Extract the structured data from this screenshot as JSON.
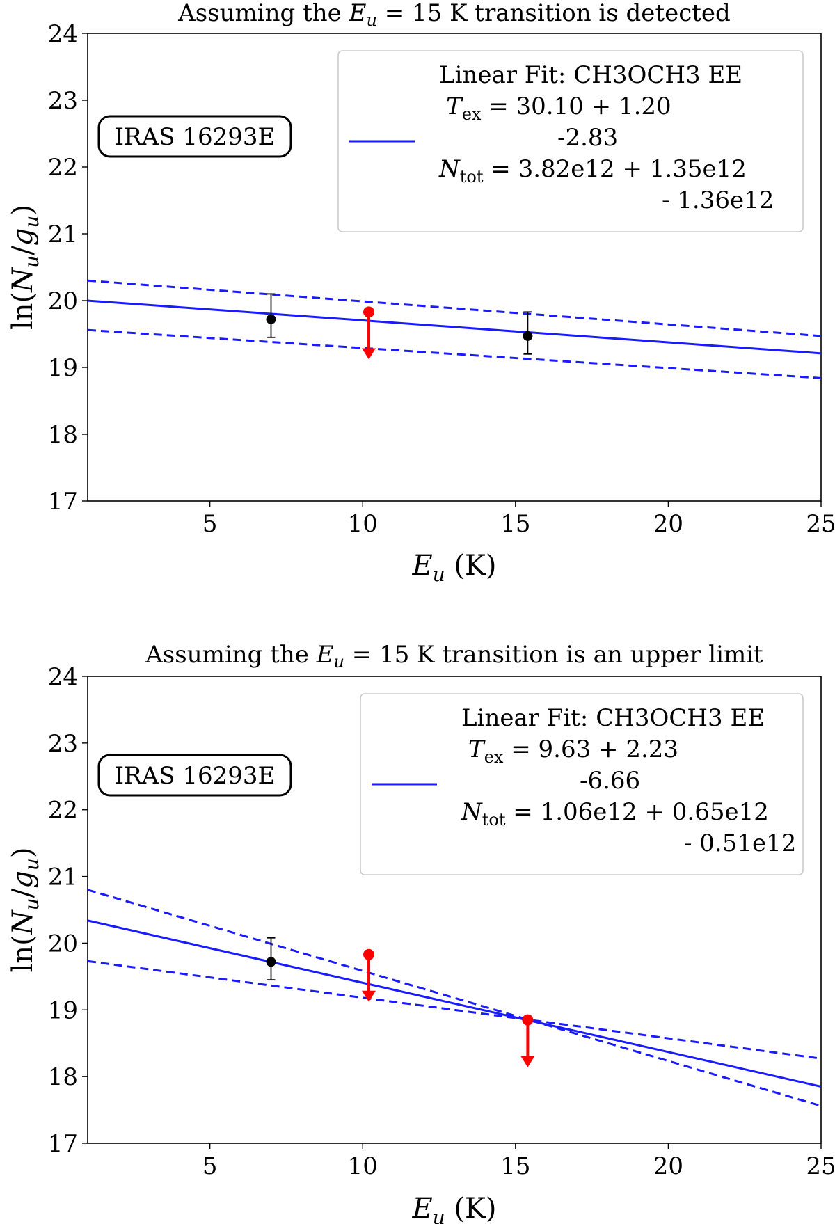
{
  "chart_data": [
    {
      "type": "scatter",
      "title_prefix": "Assuming the",
      "title_var": "E",
      "title_sub": "u",
      "title_suffix": " = 15 K transition is detected",
      "xlabel_var": "E",
      "xlabel_sub": "u",
      "xlabel_unit": " (K)",
      "ylabel": "ln(N_u/g_u)",
      "xlim": [
        1,
        25
      ],
      "ylim": [
        17,
        24
      ],
      "xticks": [
        5,
        10,
        15,
        20,
        25
      ],
      "yticks": [
        17,
        18,
        19,
        20,
        21,
        22,
        23,
        24
      ],
      "source_label": "IRAS 16293E",
      "legend": {
        "line1": "Linear Fit: CH3OCH3 EE",
        "tex_label": "T",
        "tex_sub": "ex",
        "tex_value": " = 30.10 + 1.20",
        "tex_minus": "-2.83",
        "ntot_label": "N",
        "ntot_sub": "tot",
        "ntot_value": " = 3.82e12  + 1.35e12",
        "ntot_minus": "- 1.36e12"
      },
      "fit": {
        "x": [
          1,
          25
        ],
        "y": [
          20.0,
          19.21
        ]
      },
      "fit_upper": {
        "x": [
          1,
          25
        ],
        "y": [
          20.3,
          19.47
        ]
      },
      "fit_lower": {
        "x": [
          1,
          25
        ],
        "y": [
          19.56,
          18.84
        ]
      },
      "detections": [
        {
          "x": 7.0,
          "y": 19.72,
          "yerr_low": 19.45,
          "yerr_high": 20.1
        },
        {
          "x": 15.4,
          "y": 19.47,
          "yerr_low": 19.2,
          "yerr_high": 19.83
        }
      ],
      "upper_limits": [
        {
          "x": 10.2,
          "y": 19.83,
          "arrow_to": 19.12
        }
      ],
      "colors": {
        "fit": "#1a1aff",
        "detection": "#000000",
        "limit": "#ff0000"
      }
    },
    {
      "type": "scatter",
      "title_prefix": "Assuming the",
      "title_var": "E",
      "title_sub": "u",
      "title_suffix": " = 15 K transition is an upper limit",
      "xlabel_var": "E",
      "xlabel_sub": "u",
      "xlabel_unit": " (K)",
      "ylabel": "ln(N_u/g_u)",
      "xlim": [
        1,
        25
      ],
      "ylim": [
        17,
        24
      ],
      "xticks": [
        5,
        10,
        15,
        20,
        25
      ],
      "yticks": [
        17,
        18,
        19,
        20,
        21,
        22,
        23,
        24
      ],
      "source_label": "IRAS 16293E",
      "legend": {
        "line1": "Linear Fit: CH3OCH3 EE",
        "tex_label": "T",
        "tex_sub": "ex",
        "tex_value": " = 9.63 + 2.23",
        "tex_minus": "-6.66",
        "ntot_label": "N",
        "ntot_sub": "tot",
        "ntot_value": " = 1.06e12  + 0.65e12",
        "ntot_minus": "- 0.51e12"
      },
      "fit": {
        "x": [
          1,
          25
        ],
        "y": [
          20.34,
          17.85
        ]
      },
      "fit_upper": {
        "x": [
          1,
          25
        ],
        "y": [
          20.8,
          17.56
        ]
      },
      "fit_lower": {
        "x": [
          1,
          25
        ],
        "y": [
          19.73,
          18.27
        ]
      },
      "detections": [
        {
          "x": 7.0,
          "y": 19.72,
          "yerr_low": 19.45,
          "yerr_high": 20.08
        }
      ],
      "upper_limits": [
        {
          "x": 10.2,
          "y": 19.83,
          "arrow_to": 19.12
        },
        {
          "x": 15.4,
          "y": 18.85,
          "arrow_to": 18.14
        }
      ],
      "colors": {
        "fit": "#1a1aff",
        "detection": "#000000",
        "limit": "#ff0000"
      }
    }
  ]
}
